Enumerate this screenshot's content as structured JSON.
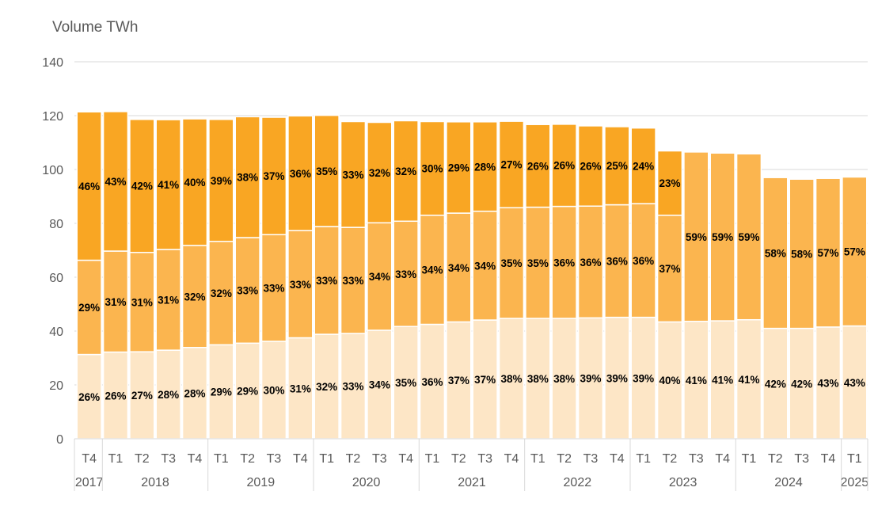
{
  "chart_data": {
    "type": "bar",
    "stacked": true,
    "ylabel": "Volume TWh",
    "ylim": [
      0,
      140
    ],
    "yticks": [
      "0",
      "20",
      "40",
      "60",
      "80",
      "100",
      "120",
      "140"
    ],
    "grid": true,
    "categories": [
      "T4",
      "T1",
      "T2",
      "T3",
      "T4",
      "T1",
      "T2",
      "T3",
      "T4",
      "T1",
      "T2",
      "T3",
      "T4",
      "T1",
      "T2",
      "T3",
      "T4",
      "T1",
      "T2",
      "T3",
      "T4",
      "T1",
      "T2",
      "T3",
      "T4",
      "T1",
      "T2",
      "T3",
      "T4",
      "T1"
    ],
    "years": [
      {
        "label": "2017",
        "count": 1
      },
      {
        "label": "2018",
        "count": 4
      },
      {
        "label": "2019",
        "count": 4
      },
      {
        "label": "2020",
        "count": 4
      },
      {
        "label": "2021",
        "count": 4
      },
      {
        "label": "2022",
        "count": 4
      },
      {
        "label": "2023",
        "count": 4
      },
      {
        "label": "2024",
        "count": 4
      },
      {
        "label": "2025",
        "count": 1
      }
    ],
    "series": [
      {
        "color": "#fde6c6",
        "values": [
          31.3,
          32.2,
          32.3,
          32.9,
          33.9,
          34.9,
          35.5,
          36.2,
          37.5,
          38.8,
          39.1,
          40.3,
          41.7,
          42.5,
          43.4,
          44.1,
          44.7,
          44.7,
          44.7,
          44.9,
          45.1,
          45.1,
          43.4,
          43.6,
          43.8,
          44.2,
          41.0,
          41.0,
          41.5,
          41.9
        ],
        "labels": [
          "26%",
          "26%",
          "27%",
          "28%",
          "28%",
          "29%",
          "29%",
          "30%",
          "31%",
          "32%",
          "33%",
          "34%",
          "35%",
          "36%",
          "37%",
          "37%",
          "38%",
          "38%",
          "38%",
          "39%",
          "39%",
          "39%",
          "40%",
          "41%",
          "41%",
          "41%",
          "42%",
          "42%",
          "43%",
          "43%"
        ]
      },
      {
        "color": "#fbb54f",
        "values": [
          35.0,
          37.5,
          36.9,
          37.4,
          37.9,
          38.4,
          39.2,
          39.6,
          39.8,
          40.0,
          39.4,
          39.9,
          39.1,
          40.5,
          40.4,
          40.4,
          41.1,
          41.3,
          41.6,
          41.5,
          41.8,
          42.2,
          39.6,
          62.9,
          62.3,
          61.6,
          56.0,
          55.4,
          55.2,
          55.3
        ],
        "labels": [
          "29%",
          "31%",
          "31%",
          "31%",
          "32%",
          "32%",
          "33%",
          "33%",
          "33%",
          "33%",
          "33%",
          "34%",
          "33%",
          "34%",
          "34%",
          "34%",
          "35%",
          "35%",
          "36%",
          "36%",
          "36%",
          "36%",
          "37%",
          "59%",
          "59%",
          "59%",
          "58%",
          "58%",
          "57%",
          "57%"
        ]
      },
      {
        "color": "#f9a623",
        "values": [
          55.1,
          51.8,
          49.4,
          48.2,
          47.0,
          45.3,
          44.9,
          43.6,
          42.6,
          41.3,
          39.3,
          37.3,
          37.3,
          34.8,
          33.9,
          33.2,
          32.1,
          30.7,
          30.5,
          29.8,
          29.0,
          28.1,
          23.9,
          0,
          0,
          0,
          0,
          0,
          0,
          0
        ],
        "labels": [
          "46%",
          "43%",
          "42%",
          "41%",
          "40%",
          "39%",
          "38%",
          "37%",
          "36%",
          "35%",
          "33%",
          "32%",
          "32%",
          "30%",
          "29%",
          "28%",
          "27%",
          "26%",
          "26%",
          "26%",
          "25%",
          "24%",
          "23%",
          "",
          "",
          "",
          "",
          "",
          "",
          ""
        ]
      }
    ]
  }
}
